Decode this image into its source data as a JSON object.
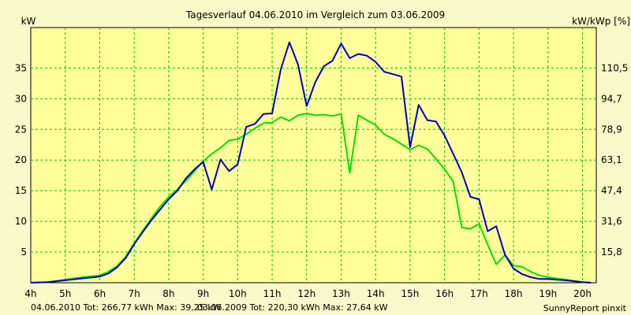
{
  "chart_data": {
    "type": "line",
    "title": "Tagesverlauf 04.06.2010 im Vergleich zum 03.06.2009",
    "ylabel_left": "kW",
    "ylabel_right": "kW/kWp [%]",
    "footer_right": "SunnyReport pinxit",
    "xlim": [
      4,
      20.4
    ],
    "ylim": [
      0,
      41.6
    ],
    "grid": true,
    "x_ticks": [
      "4h",
      "5h",
      "6h",
      "7h",
      "8h",
      "9h",
      "10h",
      "11h",
      "12h",
      "13h",
      "14h",
      "15h",
      "16h",
      "17h",
      "18h",
      "19h",
      "20h"
    ],
    "y_ticks_left": [
      "5",
      "10",
      "15",
      "20",
      "25",
      "30",
      "35"
    ],
    "y_ticks_right": [
      "15,8",
      "31,6",
      "47,4",
      "63,1",
      "78,9",
      "94,7",
      "110,5"
    ],
    "series": [
      {
        "name": "04.06.2010 Tot: 266,77 kWh Max: 39,25 kW",
        "color": "#0000c0",
        "x": [
          4.0,
          4.5,
          5.0,
          5.5,
          6.0,
          6.25,
          6.5,
          6.75,
          7.0,
          7.25,
          7.5,
          7.75,
          8.0,
          8.25,
          8.5,
          8.75,
          9.0,
          9.25,
          9.5,
          9.75,
          10.0,
          10.25,
          10.5,
          10.75,
          11.0,
          11.25,
          11.5,
          11.75,
          12.0,
          12.25,
          12.5,
          12.75,
          13.0,
          13.25,
          13.5,
          13.75,
          14.0,
          14.25,
          14.5,
          14.75,
          15.0,
          15.25,
          15.5,
          15.75,
          16.0,
          16.25,
          16.5,
          16.75,
          17.0,
          17.25,
          17.5,
          17.75,
          18.0,
          18.25,
          18.5,
          18.75,
          19.0,
          19.25,
          19.5,
          20.0,
          20.25
        ],
        "y": [
          0.0,
          0.1,
          0.4,
          0.7,
          1.0,
          1.5,
          2.5,
          4.0,
          6.3,
          8.3,
          10.2,
          11.9,
          13.6,
          15.0,
          17.0,
          18.5,
          19.7,
          15.2,
          20.1,
          18.2,
          19.3,
          25.4,
          25.9,
          27.5,
          27.6,
          34.8,
          39.2,
          35.6,
          28.8,
          32.7,
          35.3,
          36.2,
          39.0,
          36.6,
          37.3,
          37.0,
          36.0,
          34.4,
          34.0,
          33.6,
          22.1,
          29.0,
          26.5,
          26.3,
          24.0,
          21.0,
          18.0,
          14.0,
          13.6,
          8.4,
          9.2,
          4.6,
          2.3,
          1.4,
          0.9,
          0.6,
          0.6,
          0.5,
          0.4,
          0.1,
          0.0
        ]
      },
      {
        "name": "03.06.2009 Tot: 220,30 kWh Max: 27,64 kW",
        "color": "#00e000",
        "x": [
          4.0,
          4.5,
          5.0,
          5.5,
          6.0,
          6.25,
          6.5,
          6.75,
          7.0,
          7.25,
          7.5,
          7.75,
          8.0,
          8.25,
          8.5,
          8.75,
          9.0,
          9.25,
          9.5,
          9.75,
          10.0,
          10.25,
          10.5,
          10.75,
          11.0,
          11.25,
          11.5,
          11.75,
          12.0,
          12.25,
          12.5,
          12.75,
          13.0,
          13.25,
          13.5,
          13.75,
          14.0,
          14.25,
          14.5,
          14.75,
          15.0,
          15.25,
          15.5,
          15.75,
          16.0,
          16.25,
          16.5,
          16.75,
          17.0,
          17.25,
          17.5,
          17.75,
          18.0,
          18.25,
          18.5,
          18.75,
          19.0,
          19.25,
          19.5,
          20.0,
          20.25
        ],
        "y": [
          0.0,
          0.1,
          0.5,
          0.9,
          1.2,
          1.8,
          2.7,
          4.2,
          6.4,
          8.5,
          10.5,
          12.4,
          14.0,
          15.2,
          16.6,
          18.2,
          19.8,
          21.0,
          22.0,
          23.2,
          23.4,
          24.2,
          25.2,
          26.0,
          26.1,
          27.0,
          26.4,
          27.3,
          27.6,
          27.3,
          27.4,
          27.2,
          27.5,
          17.9,
          27.3,
          26.5,
          25.7,
          24.2,
          23.5,
          22.6,
          21.7,
          22.4,
          21.8,
          20.2,
          18.5,
          16.5,
          9.0,
          8.8,
          9.6,
          6.2,
          3.0,
          4.5,
          2.8,
          2.6,
          1.8,
          1.2,
          0.9,
          0.7,
          0.5,
          0.1,
          0.0
        ]
      }
    ]
  }
}
